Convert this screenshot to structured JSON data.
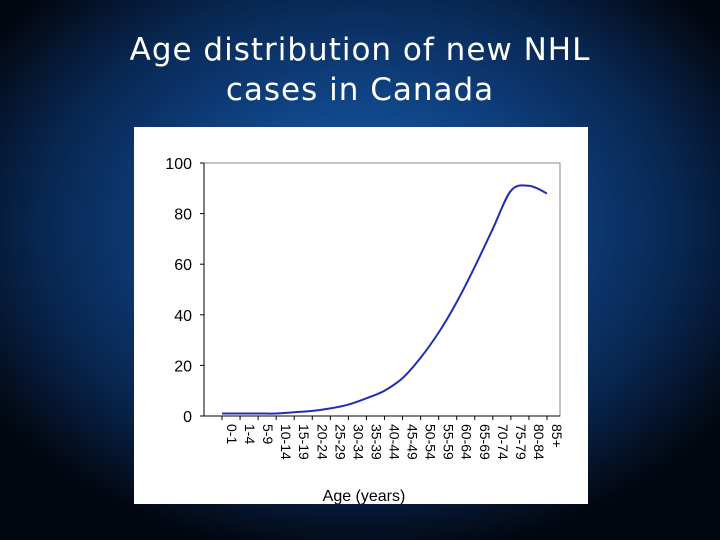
{
  "slide": {
    "title": "Age distribution of new NHL\ncases in Canada"
  },
  "chart_data": {
    "type": "line",
    "title": "",
    "xlabel": "Age (years)",
    "ylabel": "",
    "ylim": [
      0,
      100
    ],
    "yticks": [
      "0",
      "20",
      "40",
      "60",
      "80",
      "100"
    ],
    "grid": false,
    "legend": "none",
    "line_color": "#1f2fb0",
    "categories": [
      "0-1",
      "1-4",
      "5-9",
      "10-14",
      "15-19",
      "20-24",
      "25-29",
      "30-34",
      "35-39",
      "40-44",
      "45-49",
      "50-54",
      "55-59",
      "60-64",
      "65-69",
      "70-74",
      "75-79",
      "80-84",
      "85+"
    ],
    "series": [
      {
        "values": [
          1,
          1,
          1,
          1,
          1.5,
          2,
          3,
          4.5,
          7,
          10,
          15,
          23,
          33,
          45,
          59,
          74,
          89,
          91,
          88
        ]
      }
    ]
  }
}
